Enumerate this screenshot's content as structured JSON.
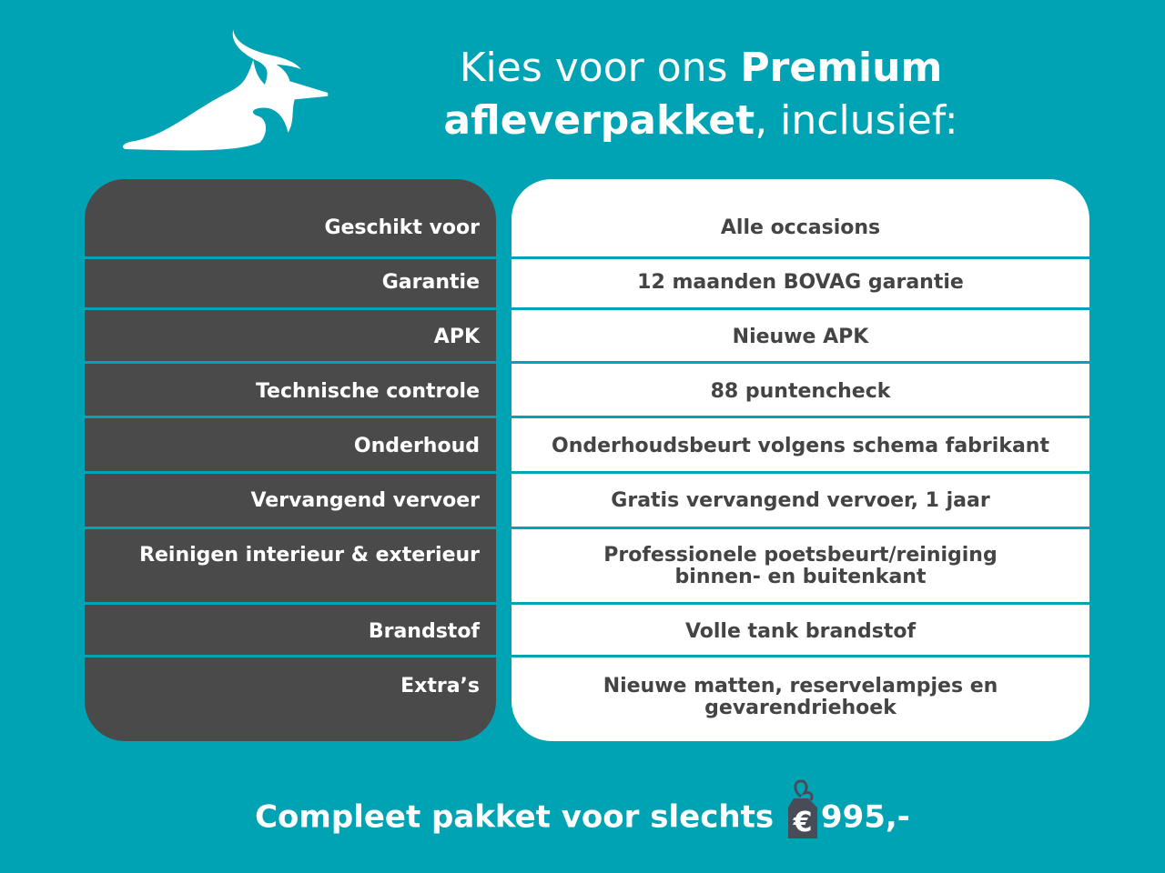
{
  "title": {
    "part1": "Kies voor ons ",
    "bold1": "Premium",
    "bold2": "afleverpakket",
    "part2": ", inclusief:"
  },
  "rows": [
    {
      "label": "Geschikt voor",
      "value": "Alle occasions"
    },
    {
      "label": "Garantie",
      "value": "12 maanden BOVAG garantie"
    },
    {
      "label": "APK",
      "value": "Nieuwe APK"
    },
    {
      "label": "Technische controle",
      "value": "88 puntencheck"
    },
    {
      "label": "Onderhoud",
      "value": "Onderhoudsbeurt volgens schema fabrikant"
    },
    {
      "label": "Vervangend vervoer",
      "value": "Gratis vervangend vervoer, 1 jaar"
    },
    {
      "label": "Reinigen interieur & exterieur",
      "value": "Professionele poetsbeurt/reiniging",
      "value2": "binnen- en buitenkant"
    },
    {
      "label": "Brandstof",
      "value": "Volle tank brandstof"
    },
    {
      "label": "Extra’s",
      "value": "Nieuwe matten, reservelampjes en",
      "value2": "gevarendriehoek"
    }
  ],
  "footer": {
    "text": "Compleet pakket voor slechts ",
    "currency": "€",
    "price": "995,-"
  },
  "colors": {
    "background": "#00A3B4",
    "label_panel": "#4a4a4a",
    "value_panel": "#ffffff",
    "value_text": "#444444"
  },
  "icons": {
    "logo": "lapwing-bird-logo",
    "price": "price-tag-icon"
  }
}
